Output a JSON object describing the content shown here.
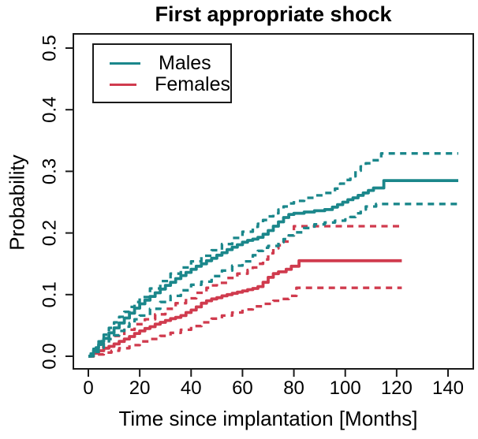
{
  "chart_data": {
    "type": "line",
    "title": "First appropriate shock",
    "xlabel": "Time since implantation [Months]",
    "ylabel": "Probability",
    "xlim": [
      0,
      140
    ],
    "ylim": [
      0.0,
      0.5
    ],
    "grid": "off",
    "legend_position": "top-left",
    "x_ticks": [
      0,
      20,
      40,
      60,
      80,
      100,
      120,
      140
    ],
    "y_ticks": [
      {
        "value": 0.0,
        "label": "0.0"
      },
      {
        "value": 0.1,
        "label": "0.1"
      },
      {
        "value": 0.2,
        "label": "0.2"
      },
      {
        "value": 0.3,
        "label": "0.3"
      },
      {
        "value": 0.4,
        "label": "0.4"
      },
      {
        "value": 0.5,
        "label": "0.5"
      }
    ],
    "legend": [
      {
        "label": "Males",
        "color": "#1b878b"
      },
      {
        "label": "Females",
        "color": "#d03b4e"
      }
    ],
    "colors": {
      "males": "#1b878b",
      "females": "#d03b4e",
      "axis": "#1a1a1a"
    },
    "series": [
      {
        "id": "females-upper-ci",
        "name": "Females upper 95% CI",
        "color": "#d03b4e",
        "style": "dashed",
        "points": [
          [
            0,
            0
          ],
          [
            2,
            0.008
          ],
          [
            4,
            0.015
          ],
          [
            6,
            0.022
          ],
          [
            8,
            0.028
          ],
          [
            10,
            0.033
          ],
          [
            14,
            0.043
          ],
          [
            18,
            0.052
          ],
          [
            22,
            0.06
          ],
          [
            26,
            0.068
          ],
          [
            30,
            0.077
          ],
          [
            34,
            0.086
          ],
          [
            38,
            0.094
          ],
          [
            42,
            0.103
          ],
          [
            46,
            0.111
          ],
          [
            48,
            0.115
          ],
          [
            50,
            0.119
          ],
          [
            54,
            0.127
          ],
          [
            58,
            0.134
          ],
          [
            62,
            0.14
          ],
          [
            64,
            0.144
          ],
          [
            66,
            0.15
          ],
          [
            68,
            0.157
          ],
          [
            70,
            0.167
          ],
          [
            72,
            0.175
          ],
          [
            74,
            0.18
          ],
          [
            76,
            0.186
          ],
          [
            78,
            0.196
          ],
          [
            80,
            0.211
          ],
          [
            122,
            0.211
          ]
        ]
      },
      {
        "id": "females-lower-ci",
        "name": "Females lower 95% CI",
        "color": "#d03b4e",
        "style": "dashed",
        "points": [
          [
            0,
            0
          ],
          [
            3,
            0.003
          ],
          [
            6,
            0.006
          ],
          [
            9,
            0.009
          ],
          [
            12,
            0.013
          ],
          [
            16,
            0.018
          ],
          [
            20,
            0.024
          ],
          [
            24,
            0.028
          ],
          [
            28,
            0.033
          ],
          [
            32,
            0.038
          ],
          [
            36,
            0.043
          ],
          [
            40,
            0.049
          ],
          [
            44,
            0.055
          ],
          [
            48,
            0.061
          ],
          [
            52,
            0.066
          ],
          [
            56,
            0.071
          ],
          [
            60,
            0.076
          ],
          [
            64,
            0.081
          ],
          [
            68,
            0.085
          ],
          [
            72,
            0.09
          ],
          [
            75,
            0.093
          ],
          [
            78,
            0.098
          ],
          [
            81,
            0.111
          ],
          [
            122,
            0.111
          ]
        ]
      },
      {
        "id": "females-estimate",
        "name": "Females",
        "color": "#d03b4e",
        "style": "solid",
        "points": [
          [
            0,
            0
          ],
          [
            2,
            0.005
          ],
          [
            4,
            0.009
          ],
          [
            6,
            0.013
          ],
          [
            8,
            0.016
          ],
          [
            10,
            0.02
          ],
          [
            12,
            0.024
          ],
          [
            14,
            0.028
          ],
          [
            16,
            0.032
          ],
          [
            18,
            0.037
          ],
          [
            20,
            0.041
          ],
          [
            22,
            0.045
          ],
          [
            24,
            0.048
          ],
          [
            26,
            0.052
          ],
          [
            28,
            0.055
          ],
          [
            30,
            0.058
          ],
          [
            32,
            0.061
          ],
          [
            34,
            0.063
          ],
          [
            36,
            0.066
          ],
          [
            38,
            0.071
          ],
          [
            40,
            0.075
          ],
          [
            42,
            0.08
          ],
          [
            44,
            0.086
          ],
          [
            46,
            0.09
          ],
          [
            48,
            0.093
          ],
          [
            50,
            0.095
          ],
          [
            52,
            0.098
          ],
          [
            54,
            0.1
          ],
          [
            56,
            0.102
          ],
          [
            58,
            0.104
          ],
          [
            60,
            0.106
          ],
          [
            62,
            0.108
          ],
          [
            64,
            0.11
          ],
          [
            66,
            0.113
          ],
          [
            68,
            0.12
          ],
          [
            70,
            0.128
          ],
          [
            72,
            0.134
          ],
          [
            74,
            0.137
          ],
          [
            77,
            0.141
          ],
          [
            79,
            0.146
          ],
          [
            82,
            0.155
          ],
          [
            122,
            0.155
          ]
        ]
      },
      {
        "id": "males-upper-ci",
        "name": "Males upper 95% CI",
        "color": "#1b878b",
        "style": "dashed",
        "points": [
          [
            0,
            0
          ],
          [
            1,
            0.006
          ],
          [
            2,
            0.012
          ],
          [
            4,
            0.024
          ],
          [
            6,
            0.035
          ],
          [
            8,
            0.046
          ],
          [
            10,
            0.055
          ],
          [
            12,
            0.064
          ],
          [
            14,
            0.072
          ],
          [
            16,
            0.08
          ],
          [
            18,
            0.088
          ],
          [
            20,
            0.096
          ],
          [
            24,
            0.11
          ],
          [
            28,
            0.122
          ],
          [
            32,
            0.134
          ],
          [
            36,
            0.144
          ],
          [
            40,
            0.154
          ],
          [
            44,
            0.163
          ],
          [
            48,
            0.172
          ],
          [
            52,
            0.182
          ],
          [
            56,
            0.192
          ],
          [
            60,
            0.202
          ],
          [
            64,
            0.21
          ],
          [
            66,
            0.215
          ],
          [
            68,
            0.221
          ],
          [
            70,
            0.227
          ],
          [
            72,
            0.232
          ],
          [
            74,
            0.238
          ],
          [
            76,
            0.243
          ],
          [
            78,
            0.248
          ],
          [
            80,
            0.252
          ],
          [
            84,
            0.257
          ],
          [
            88,
            0.261
          ],
          [
            92,
            0.265
          ],
          [
            96,
            0.272
          ],
          [
            98,
            0.28
          ],
          [
            100,
            0.286
          ],
          [
            102,
            0.292
          ],
          [
            104,
            0.301
          ],
          [
            106,
            0.308
          ],
          [
            108,
            0.313
          ],
          [
            110,
            0.318
          ],
          [
            114,
            0.329
          ],
          [
            144,
            0.329
          ]
        ]
      },
      {
        "id": "males-lower-ci",
        "name": "Males lower 95% CI",
        "color": "#1b878b",
        "style": "dashed",
        "points": [
          [
            0,
            0
          ],
          [
            2,
            0.007
          ],
          [
            4,
            0.014
          ],
          [
            6,
            0.021
          ],
          [
            8,
            0.028
          ],
          [
            10,
            0.034
          ],
          [
            12,
            0.041
          ],
          [
            14,
            0.048
          ],
          [
            16,
            0.054
          ],
          [
            18,
            0.06
          ],
          [
            20,
            0.066
          ],
          [
            24,
            0.077
          ],
          [
            28,
            0.088
          ],
          [
            32,
            0.098
          ],
          [
            36,
            0.107
          ],
          [
            40,
            0.116
          ],
          [
            44,
            0.121
          ],
          [
            48,
            0.13
          ],
          [
            52,
            0.139
          ],
          [
            56,
            0.147
          ],
          [
            60,
            0.154
          ],
          [
            64,
            0.164
          ],
          [
            66,
            0.171
          ],
          [
            68,
            0.176
          ],
          [
            70,
            0.179
          ],
          [
            74,
            0.185
          ],
          [
            76,
            0.19
          ],
          [
            78,
            0.196
          ],
          [
            80,
            0.201
          ],
          [
            84,
            0.208
          ],
          [
            88,
            0.214
          ],
          [
            92,
            0.217
          ],
          [
            96,
            0.22
          ],
          [
            100,
            0.222
          ],
          [
            102,
            0.226
          ],
          [
            104,
            0.232
          ],
          [
            106,
            0.238
          ],
          [
            108,
            0.243
          ],
          [
            112,
            0.247
          ],
          [
            144,
            0.247
          ]
        ]
      },
      {
        "id": "males-estimate",
        "name": "Males",
        "color": "#1b878b",
        "style": "solid",
        "points": [
          [
            0,
            0
          ],
          [
            1,
            0.004
          ],
          [
            2,
            0.009
          ],
          [
            3,
            0.014
          ],
          [
            4,
            0.019
          ],
          [
            5,
            0.024
          ],
          [
            6,
            0.029
          ],
          [
            8,
            0.038
          ],
          [
            10,
            0.046
          ],
          [
            12,
            0.054
          ],
          [
            14,
            0.062
          ],
          [
            16,
            0.07
          ],
          [
            18,
            0.078
          ],
          [
            20,
            0.085
          ],
          [
            22,
            0.091
          ],
          [
            24,
            0.097
          ],
          [
            26,
            0.103
          ],
          [
            28,
            0.109
          ],
          [
            30,
            0.115
          ],
          [
            32,
            0.12
          ],
          [
            34,
            0.126
          ],
          [
            36,
            0.131
          ],
          [
            38,
            0.136
          ],
          [
            40,
            0.141
          ],
          [
            42,
            0.146
          ],
          [
            44,
            0.15
          ],
          [
            46,
            0.155
          ],
          [
            48,
            0.159
          ],
          [
            50,
            0.164
          ],
          [
            52,
            0.168
          ],
          [
            54,
            0.173
          ],
          [
            56,
            0.177
          ],
          [
            58,
            0.181
          ],
          [
            60,
            0.185
          ],
          [
            62,
            0.188
          ],
          [
            64,
            0.19
          ],
          [
            66,
            0.193
          ],
          [
            68,
            0.198
          ],
          [
            70,
            0.204
          ],
          [
            72,
            0.211
          ],
          [
            74,
            0.218
          ],
          [
            76,
            0.225
          ],
          [
            78,
            0.23
          ],
          [
            80,
            0.232
          ],
          [
            84,
            0.234
          ],
          [
            88,
            0.236
          ],
          [
            92,
            0.238
          ],
          [
            95,
            0.242
          ],
          [
            97,
            0.246
          ],
          [
            99,
            0.25
          ],
          [
            101,
            0.254
          ],
          [
            103,
            0.257
          ],
          [
            105,
            0.261
          ],
          [
            107,
            0.265
          ],
          [
            109,
            0.269
          ],
          [
            111,
            0.273
          ],
          [
            115,
            0.285
          ],
          [
            144,
            0.285
          ]
        ]
      }
    ]
  }
}
